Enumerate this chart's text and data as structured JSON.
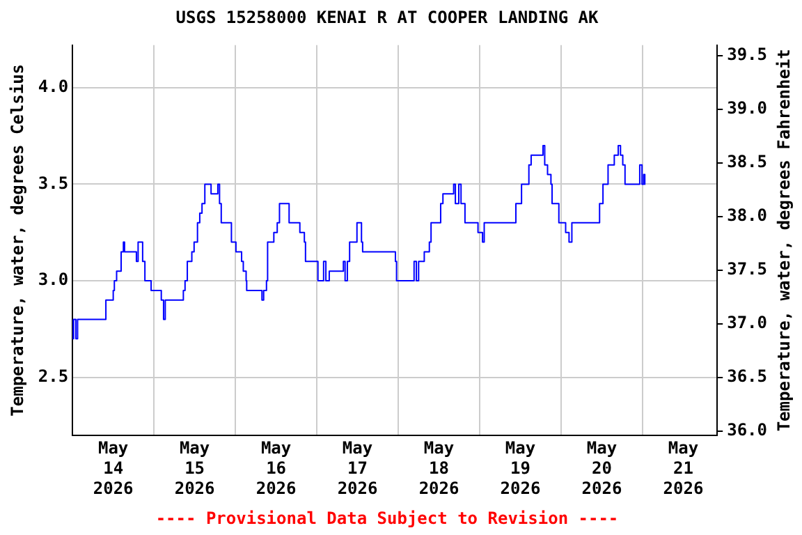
{
  "chart_data": {
    "type": "step",
    "title": "USGS 15258000 KENAI R AT COOPER LANDING AK",
    "ylabel": "Temperature, water, degrees Celsius",
    "y2label": "Temperature, water, degrees Fahrenheit",
    "annotations": [
      "---- Provisional Data Subject to Revision ----"
    ],
    "x": [
      "2026-05-14T00:00",
      "2026-05-14T00:20",
      "2026-05-14T01:00",
      "2026-05-14T01:30",
      "2026-05-14T09:50",
      "2026-05-14T12:00",
      "2026-05-14T12:20",
      "2026-05-14T13:00",
      "2026-05-14T14:20",
      "2026-05-14T15:00",
      "2026-05-14T15:20",
      "2026-05-14T18:50",
      "2026-05-14T19:20",
      "2026-05-14T20:40",
      "2026-05-14T21:20",
      "2026-05-14T23:10",
      "2026-05-15T02:10",
      "2026-05-15T02:50",
      "2026-05-15T03:20",
      "2026-05-15T08:40",
      "2026-05-15T09:10",
      "2026-05-15T09:50",
      "2026-05-15T11:10",
      "2026-05-15T11:50",
      "2026-05-15T12:50",
      "2026-05-15T13:30",
      "2026-05-15T14:10",
      "2026-05-15T15:00",
      "2026-05-15T16:50",
      "2026-05-15T18:50",
      "2026-05-15T19:20",
      "2026-05-15T19:50",
      "2026-05-15T22:50",
      "2026-05-16T00:10",
      "2026-05-16T01:50",
      "2026-05-16T02:20",
      "2026-05-16T03:10",
      "2026-05-16T03:20",
      "2026-05-16T07:50",
      "2026-05-16T08:20",
      "2026-05-16T09:10",
      "2026-05-16T09:30",
      "2026-05-16T11:20",
      "2026-05-16T12:20",
      "2026-05-16T13:00",
      "2026-05-16T15:50",
      "2026-05-16T19:00",
      "2026-05-16T20:20",
      "2026-05-16T20:40",
      "2026-05-17T00:20",
      "2026-05-17T02:00",
      "2026-05-17T02:40",
      "2026-05-17T03:40",
      "2026-05-17T07:50",
      "2026-05-17T08:20",
      "2026-05-17T09:00",
      "2026-05-17T09:40",
      "2026-05-17T11:50",
      "2026-05-17T13:10",
      "2026-05-17T13:30",
      "2026-05-17T23:10",
      "2026-05-17T23:30",
      "2026-05-18T04:40",
      "2026-05-18T05:20",
      "2026-05-18T06:00",
      "2026-05-18T07:40",
      "2026-05-18T09:10",
      "2026-05-18T09:40",
      "2026-05-18T12:30",
      "2026-05-18T13:10",
      "2026-05-18T16:20",
      "2026-05-18T16:50",
      "2026-05-18T17:50",
      "2026-05-18T18:30",
      "2026-05-18T19:40",
      "2026-05-18T23:30",
      "2026-05-19T00:50",
      "2026-05-19T01:20",
      "2026-05-19T10:40",
      "2026-05-19T12:20",
      "2026-05-19T14:30",
      "2026-05-19T15:10",
      "2026-05-19T18:40",
      "2026-05-19T19:10",
      "2026-05-19T20:00",
      "2026-05-19T21:00",
      "2026-05-19T21:20",
      "2026-05-19T23:20",
      "2026-05-20T01:20",
      "2026-05-20T02:20",
      "2026-05-20T03:10",
      "2026-05-20T11:20",
      "2026-05-20T12:20",
      "2026-05-20T13:50",
      "2026-05-20T15:40",
      "2026-05-20T16:50",
      "2026-05-20T17:30",
      "2026-05-20T18:10",
      "2026-05-20T18:50",
      "2026-05-20T23:10",
      "2026-05-20T23:50",
      "2026-05-21T00:20",
      "2026-05-21T00:40",
      "2026-05-21T00:50"
    ],
    "series": [
      {
        "color": "#0000ff",
        "values": [
          2.8,
          2.7,
          2.8,
          2.7,
          2.8,
          2.9,
          2.95,
          3.0,
          3.05,
          3.15,
          3.2,
          3.15,
          3.1,
          3.2,
          3.1,
          3.0,
          2.95,
          2.9,
          2.8,
          2.9,
          2.95,
          3.0,
          3.1,
          3.15,
          3.2,
          3.3,
          3.35,
          3.4,
          3.5,
          3.45,
          3.5,
          3.4,
          3.3,
          3.2,
          3.15,
          3.1,
          3.05,
          3.0,
          2.95,
          2.9,
          2.95,
          3.0,
          3.2,
          3.25,
          3.3,
          3.4,
          3.3,
          3.25,
          3.2,
          3.1,
          3.0,
          3.1,
          3.0,
          3.05,
          3.1,
          3.0,
          3.1,
          3.2,
          3.3,
          3.2,
          3.15,
          3.1,
          3.0,
          3.1,
          3.0,
          3.1,
          3.15,
          3.2,
          3.3,
          3.4,
          3.45,
          3.5,
          3.4,
          3.5,
          3.4,
          3.3,
          3.25,
          3.2,
          3.3,
          3.4,
          3.5,
          3.6,
          3.65,
          3.7,
          3.6,
          3.55,
          3.5,
          3.4,
          3.3,
          3.25,
          3.2,
          3.3,
          3.4,
          3.5,
          3.6,
          3.65,
          3.7,
          3.65,
          3.6,
          3.5,
          3.6,
          3.5,
          3.55,
          3.5
        ]
      }
    ],
    "xlim": [
      "2026-05-14T00:00",
      "2026-05-21T22:00"
    ],
    "xticks": [
      {
        "value": "2026-05-14T00:00",
        "label": null
      },
      {
        "value": "2026-05-14T12:00",
        "label": "May\n14\n2026"
      },
      {
        "value": "2026-05-15T00:00",
        "label": null
      },
      {
        "value": "2026-05-15T12:00",
        "label": "May\n15\n2026"
      },
      {
        "value": "2026-05-16T00:00",
        "label": null
      },
      {
        "value": "2026-05-16T12:00",
        "label": "May\n16\n2026"
      },
      {
        "value": "2026-05-17T00:00",
        "label": null
      },
      {
        "value": "2026-05-17T12:00",
        "label": "May\n17\n2026"
      },
      {
        "value": "2026-05-18T00:00",
        "label": null
      },
      {
        "value": "2026-05-18T12:00",
        "label": "May\n18\n2026"
      },
      {
        "value": "2026-05-19T00:00",
        "label": null
      },
      {
        "value": "2026-05-19T12:00",
        "label": "May\n19\n2026"
      },
      {
        "value": "2026-05-20T00:00",
        "label": null
      },
      {
        "value": "2026-05-20T12:00",
        "label": "May\n20\n2026"
      },
      {
        "value": "2026-05-21T00:00",
        "label": null
      },
      {
        "value": "2026-05-21T12:00",
        "label": "May\n21\n2026"
      }
    ],
    "ylim": [
      2.2,
      4.22
    ],
    "yticks": [
      {
        "value": 2.5,
        "label": "2.5"
      },
      {
        "value": 3,
        "label": "3.0"
      },
      {
        "value": 3.5,
        "label": "3.5"
      },
      {
        "value": 4,
        "label": "4.0"
      }
    ],
    "y2lim": [
      35.96,
      39.596
    ],
    "y2ticks": [
      {
        "value": 36,
        "label": "36.0"
      },
      {
        "value": 36.5,
        "label": "36.5"
      },
      {
        "value": 37,
        "label": "37.0"
      },
      {
        "value": 37.5,
        "label": "37.5"
      },
      {
        "value": 38,
        "label": "38.0"
      },
      {
        "value": 38.5,
        "label": "38.5"
      },
      {
        "value": 39,
        "label": "39.0"
      },
      {
        "value": 39.5,
        "label": "39.5"
      }
    ],
    "grid": true,
    "legend": false,
    "marker": "none",
    "line_style": "solid"
  }
}
